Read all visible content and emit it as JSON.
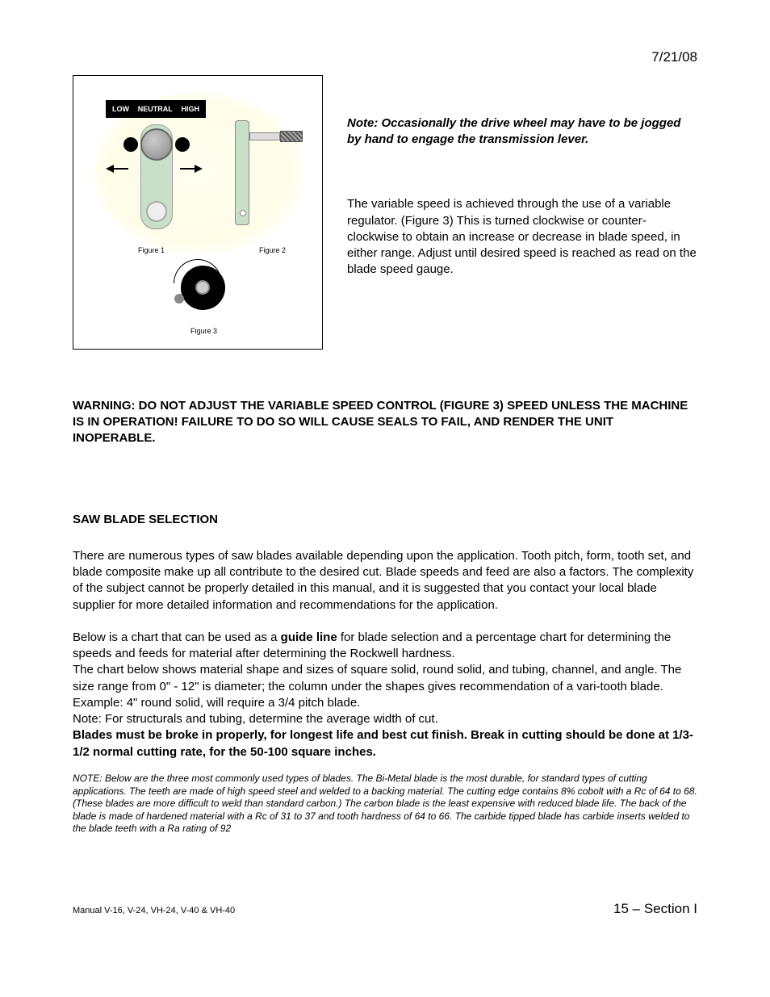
{
  "date": "7/21/08",
  "figure": {
    "switch_low": "LOW",
    "switch_neutral": "NEUTRAL",
    "switch_high": "HIGH",
    "caption1": "Figure 1",
    "caption2": "Figure 2",
    "caption3": "Figure 3"
  },
  "note": "Note: Occasionally the drive wheel may have to be jogged by hand to engage the transmission lever.",
  "body1": "The variable speed is achieved through the use of a variable regulator. (Figure 3) This is turned clockwise or counter- clockwise to obtain an increase or decrease in blade speed, in either range. Adjust until desired speed is reached as read on the blade speed gauge.",
  "warning": "WARNING: DO NOT ADJUST THE VARIABLE SPEED CONTROL (FIGURE 3) SPEED UNLESS THE MACHINE IS IN OPERATION! FAILURE TO DO SO WILL CAUSE SEALS TO FAIL, AND RENDER THE UNIT INOPERABLE.",
  "section_head": "SAW BLADE SELECTION",
  "body2": "There are numerous types of saw blades available depending upon the application. Tooth pitch, form, tooth set, and blade composite make up all contribute to the desired cut. Blade speeds and feed are also a factors. The complexity of the subject cannot be properly detailed in this manual, and it is suggested that you contact your local blade supplier for more detailed information and recommendations for the application.",
  "body3_pre": "Below is a chart that can be used as a ",
  "body3_bold": "guide line",
  "body3_post": " for blade selection and a percentage chart for determining the speeds and feeds for material after determining the Rockwell hardness.",
  "body4": "The chart below shows material shape and sizes of square solid, round solid, and tubing, channel, and angle. The size range from 0\" - 12\" is diameter; the column under the shapes gives recommendation of a vari-tooth blade. Example: 4\" round solid, will require a 3/4 pitch blade.",
  "body5": "Note: For structurals and tubing, determine the average width of cut.",
  "body6": "Blades must be broke in properly, for longest life and best cut finish. Break in cutting should be done at 1/3-1/2 normal cutting rate, for the 50-100 square inches.",
  "small_note": "NOTE:  Below are the three most commonly used types of blades.  The Bi-Metal blade is the most durable, for standard types of cutting applications.  The teeth are made of high speed steel and welded to a backing material.  The cutting edge contains 8% cobolt with a Rc of 64 to 68.  (These blades are more difficult to weld than standard carbon.)  The carbon blade is the least expensive with reduced blade life.  The back of the blade is made of hardened material with a Rc of 31 to 37 and tooth hardness of 64 to 66.  The carbide tipped blade has carbide inserts welded to the blade teeth with a Ra rating of 92",
  "footer_left": "Manual V-16, V-24, VH-24, V-40 & VH-40",
  "footer_right": "15 – Section I",
  "colors": {
    "lever_fill": "#c8e0c8",
    "bg_tint": "#fffef0"
  }
}
